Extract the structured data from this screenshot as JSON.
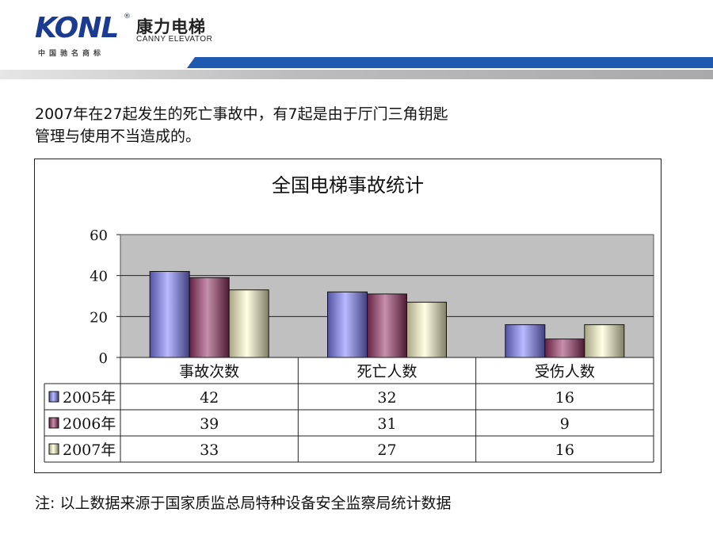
{
  "header": {
    "logo_mark": "KONL",
    "logo_cn": "康力电梯",
    "logo_en": "CANNY ELEVATOR",
    "logo_tag": "中国驰名商标",
    "colors": {
      "blue_band": "#1f59b0",
      "gray_band": "#b0b0b0"
    }
  },
  "intro": {
    "line1": "2007年在27起发生的死亡事故中，有7起是由于厅门三角钥匙",
    "line2": "管理与使用不当造成的。"
  },
  "note": "注: 以上数据来源于国家质监总局特种设备安全监察局统计数据",
  "chart_data": {
    "type": "bar",
    "title": "全国电梯事故统计",
    "categories": [
      "事故次数",
      "死亡人数",
      "受伤人数"
    ],
    "series": [
      {
        "name": "2005年",
        "values": [
          42,
          32,
          16
        ],
        "color": "#8080ff"
      },
      {
        "name": "2006年",
        "values": [
          39,
          31,
          9
        ],
        "color": "#993366"
      },
      {
        "name": "2007年",
        "values": [
          33,
          27,
          16
        ],
        "color": "#ffffcc"
      }
    ],
    "ylim": [
      0,
      60
    ],
    "yticks": [
      "0",
      "20",
      "40",
      "60"
    ],
    "grid": true,
    "legend": "data-table-below",
    "colors": {
      "plot_bg": "#c0c0c0"
    }
  }
}
